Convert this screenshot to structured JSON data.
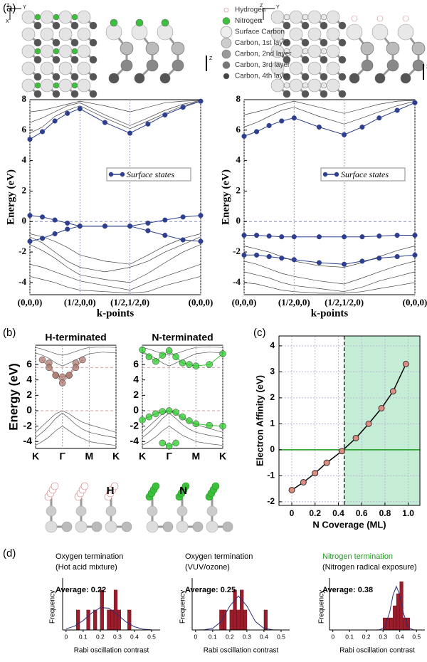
{
  "figure": {
    "panel_labels": [
      "(a)",
      "(b)",
      "(c)",
      "(d)"
    ],
    "axis_letters": [
      "Z",
      "Y",
      "X"
    ],
    "structure_legend": [
      "Hydrogen",
      "Nitrogen",
      "Surface Carbon",
      "Carbon, 1st layer",
      "Carbon, 2nd layer",
      "Carbon, 3rd layer",
      "Carbon, 4th layer"
    ]
  },
  "chart_data": [
    {
      "type": "band",
      "xlabel": "k-points",
      "ylabel": "Energy (eV)",
      "xlim": [
        0,
        1.707
      ],
      "xticks": [
        {
          "value": 0,
          "label": "(0,0,0)"
        },
        {
          "value": 0.5,
          "label": "(1/2,0,0)"
        },
        {
          "value": 1,
          "label": "(1/2,1/2,0)"
        },
        {
          "value": 1.707,
          "label": "(0,0,0)"
        }
      ],
      "ylim": [
        -4.8,
        8
      ],
      "yticks": [
        -4,
        -2,
        0,
        2,
        4,
        6,
        8
      ],
      "hlines": [
        0
      ],
      "hline_color": "#8a8fc0",
      "legend": "center",
      "x": [
        0,
        0.125,
        0.25,
        0.375,
        0.5,
        0.75,
        1,
        1.18,
        1.35,
        1.53,
        1.707
      ],
      "bulk_color": "#444444",
      "bulk_bands": [
        [
          -0.8,
          -1.0,
          -1.3,
          -1.7,
          -2.2,
          -2.6,
          -2.8,
          -2.2,
          -1.6,
          -1.1,
          -0.8
        ],
        [
          -1.0,
          -1.4,
          -2.0,
          -2.6,
          -3.0,
          -3.3,
          -3.0,
          -2.6,
          -2.0,
          -1.5,
          -1.0
        ],
        [
          -1.5,
          -1.9,
          -2.4,
          -3.0,
          -3.5,
          -3.8,
          -4.0,
          -3.4,
          -2.7,
          -2.0,
          -1.5
        ],
        [
          -2.8,
          -3.0,
          -3.3,
          -3.6,
          -3.9,
          -4.2,
          -4.5,
          -4.0,
          -3.6,
          -3.2,
          -2.8
        ],
        [
          -3.6,
          -3.8,
          -4.0,
          -4.3,
          -4.5,
          -4.6,
          -4.7,
          -4.6,
          -4.2,
          -3.9,
          -3.6
        ],
        [
          5.8,
          6.2,
          6.9,
          7.3,
          7.6,
          6.8,
          6.1,
          6.6,
          7.1,
          7.6,
          7.9
        ],
        [
          6.5,
          6.8,
          7.2,
          7.6,
          7.8,
          7.0,
          6.3,
          6.8,
          7.3,
          7.7,
          7.95
        ],
        [
          7.2,
          7.3,
          7.5,
          7.7,
          7.9,
          7.6,
          7.2,
          7.5,
          7.8,
          7.9,
          7.95
        ]
      ],
      "series": [
        {
          "name": "Surface states",
          "color": "#2d3f8e",
          "bands": [
            [
              0.4,
              0.3,
              0.1,
              -0.1,
              -0.3,
              -0.3,
              -0.3,
              -0.1,
              0.1,
              0.3,
              0.4
            ],
            [
              -1.3,
              -1.1,
              -0.8,
              -0.5,
              -0.3,
              -0.3,
              -0.3,
              -0.6,
              -0.9,
              -1.2,
              -1.3
            ],
            [
              5.4,
              5.9,
              6.6,
              7.1,
              7.4,
              6.5,
              5.8,
              6.4,
              7.0,
              7.5,
              7.9
            ]
          ]
        }
      ]
    },
    {
      "type": "band",
      "xlabel": "k-points",
      "ylabel": "Energy (eV)",
      "xlim": [
        0,
        1.707
      ],
      "xticks": [
        {
          "value": 0,
          "label": "(0,0,0)"
        },
        {
          "value": 0.5,
          "label": "(1/2,0,0)"
        },
        {
          "value": 1,
          "label": "(1/2,1/2,0)"
        },
        {
          "value": 1.707,
          "label": "(0,0,0)"
        }
      ],
      "ylim": [
        -4.8,
        8
      ],
      "yticks": [
        -4,
        -2,
        0,
        2,
        4,
        6,
        8
      ],
      "hlines": [
        0
      ],
      "hline_color": "#8a8fc0",
      "legend": "center",
      "x": [
        0,
        0.125,
        0.25,
        0.375,
        0.5,
        0.75,
        1,
        1.18,
        1.35,
        1.53,
        1.707
      ],
      "bulk_color": "#444444",
      "bulk_bands": [
        [
          -1.6,
          -1.8,
          -2.0,
          -2.3,
          -2.6,
          -2.9,
          -3.0,
          -2.7,
          -2.3,
          -1.9,
          -1.6
        ],
        [
          -2.6,
          -2.8,
          -3.1,
          -3.4,
          -3.6,
          -3.9,
          -4.1,
          -3.7,
          -3.3,
          -2.9,
          -2.6
        ],
        [
          -3.3,
          -3.5,
          -3.7,
          -4.0,
          -4.2,
          -4.4,
          -4.6,
          -4.3,
          -3.9,
          -3.6,
          -3.3
        ],
        [
          -4.0,
          -4.1,
          -4.3,
          -4.5,
          -4.6,
          -4.7,
          -4.7,
          -4.6,
          -4.4,
          -4.2,
          -4.0
        ],
        [
          6.2,
          6.5,
          6.9,
          7.3,
          7.5,
          6.9,
          6.4,
          6.8,
          7.2,
          7.6,
          7.9
        ],
        [
          7.0,
          7.2,
          7.4,
          7.7,
          7.9,
          7.5,
          7.1,
          7.4,
          7.7,
          7.9,
          7.95
        ]
      ],
      "series": [
        {
          "name": "Surface states",
          "color": "#2d3f8e",
          "bands": [
            [
              -0.9,
              -0.9,
              -0.95,
              -1.0,
              -1.0,
              -1.0,
              -1.0,
              -1.0,
              -0.95,
              -0.9,
              -0.9
            ],
            [
              -2.2,
              -2.2,
              -2.3,
              -2.4,
              -2.5,
              -2.7,
              -2.8,
              -2.6,
              -2.4,
              -2.3,
              -2.2
            ],
            [
              5.6,
              5.9,
              6.3,
              6.6,
              6.8,
              6.2,
              5.7,
              6.2,
              6.8,
              7.3,
              7.8
            ]
          ]
        }
      ]
    },
    {
      "type": "band",
      "title": "H-terminated",
      "ylabel": "Energy (eV)",
      "atom_label": "H",
      "xlim": [
        0,
        3
      ],
      "xticks": [
        {
          "value": 0,
          "label": "K"
        },
        {
          "value": 1,
          "label": "Γ"
        },
        {
          "value": 2,
          "label": "M"
        },
        {
          "value": 3,
          "label": "K"
        }
      ],
      "ylim": [
        -4.9,
        8.5
      ],
      "yticks": [
        -4,
        -2,
        0,
        2,
        4,
        6
      ],
      "hlines": [
        0,
        5.6
      ],
      "hline_color": "#d0a0a0",
      "x": [
        0,
        0.25,
        0.5,
        0.75,
        1,
        1.25,
        1.5,
        1.75,
        2,
        2.5,
        3
      ],
      "bulk_color": "#555555",
      "bulk_bands": [
        [
          -2.8,
          -2.0,
          -1.2,
          -0.4,
          0,
          -0.4,
          -1.0,
          -1.5,
          -1.8,
          -2.3,
          -2.8
        ],
        [
          -3.5,
          -2.8,
          -2.0,
          -1.0,
          -0.3,
          -1.0,
          -1.8,
          -2.4,
          -2.8,
          -3.2,
          -3.5
        ],
        [
          -4.5,
          -4.0,
          -3.4,
          -2.6,
          -2.0,
          -2.6,
          -3.2,
          -3.6,
          -4.0,
          -4.3,
          -4.5
        ],
        [
          7.5,
          7.2,
          6.8,
          6.2,
          5.8,
          6.2,
          6.6,
          7.0,
          7.4,
          7.6,
          7.5
        ],
        [
          8.2,
          8.0,
          7.7,
          7.4,
          7.2,
          7.4,
          7.7,
          8.0,
          8.2,
          8.3,
          8.2
        ]
      ],
      "series": [
        {
          "color": "#b07a70",
          "bands": [
            [
              null,
              null,
              6.2,
              4.6,
              3.6,
              4.6,
              6.2,
              null,
              null,
              null,
              null
            ],
            [
              null,
              6.6,
              5.6,
              4.6,
              4.4,
              4.6,
              5.6,
              6.6,
              null,
              null,
              null
            ]
          ]
        }
      ]
    },
    {
      "type": "band",
      "title": "N-terminated",
      "atom_label": "N",
      "xlim": [
        0,
        3
      ],
      "xticks": [
        {
          "value": 0,
          "label": "K"
        },
        {
          "value": 1,
          "label": "Γ"
        },
        {
          "value": 2,
          "label": "M"
        },
        {
          "value": 3,
          "label": "K"
        }
      ],
      "ylim": [
        -4.9,
        8.5
      ],
      "yticks": [
        -4,
        -2,
        0,
        2,
        4,
        6
      ],
      "hlines": [
        0,
        5.6
      ],
      "hline_color": "#d0a0a0",
      "x": [
        0,
        0.25,
        0.5,
        0.75,
        1,
        1.25,
        1.5,
        1.75,
        2,
        2.5,
        3
      ],
      "bulk_color": "#555555",
      "bulk_bands": [
        [
          -2.8,
          -2.0,
          -1.2,
          -0.4,
          0,
          -0.4,
          -1.0,
          -1.5,
          -1.8,
          -2.3,
          -2.8
        ],
        [
          -3.5,
          -2.8,
          -2.0,
          -1.0,
          -0.3,
          -1.0,
          -1.8,
          -2.4,
          -2.8,
          -3.2,
          -3.5
        ],
        [
          -4.5,
          -4.0,
          -3.4,
          -2.6,
          -2.0,
          -2.6,
          -3.2,
          -3.6,
          -4.0,
          -4.3,
          -4.5
        ],
        [
          7.5,
          7.2,
          6.8,
          6.2,
          5.8,
          6.2,
          6.6,
          7.0,
          7.4,
          7.6,
          7.5
        ],
        [
          8.2,
          8.0,
          7.7,
          7.4,
          7.2,
          7.4,
          7.7,
          8.0,
          8.2,
          8.3,
          8.2
        ]
      ],
      "series": [
        {
          "color": "#2ecc2e",
          "bands": [
            [
              -1.2,
              -0.8,
              -0.4,
              -0.1,
              0,
              -0.2,
              -0.8,
              -1.3,
              -1.7,
              -1.9,
              -2.0
            ],
            [
              null,
              null,
              null,
              -4.2,
              -4.6,
              -4.2,
              null,
              null,
              null,
              null,
              null
            ],
            [
              7.9,
              7.0,
              6.4,
              7.2,
              7.8,
              7.0,
              6.2,
              6.0,
              5.8,
              6.0,
              7.4
            ]
          ]
        }
      ]
    },
    {
      "type": "line",
      "xlabel": "N Coverage (ML)",
      "ylabel": "Electron Affinity (eV)",
      "x": [
        0,
        0.1,
        0.2,
        0.3,
        0.43,
        0.55,
        0.66,
        0.77,
        0.87,
        0.98
      ],
      "values": [
        -1.55,
        -1.25,
        -0.9,
        -0.5,
        -0.05,
        0.45,
        1.0,
        1.6,
        2.25,
        3.3
      ],
      "color": "#e08b80",
      "xlim": [
        -0.11,
        1.1
      ],
      "ylim": [
        -2.14,
        4.38
      ],
      "xticks": [
        0,
        0.2,
        0.4,
        0.6,
        0.8,
        {
          "value": 1,
          "label": "1.0"
        }
      ],
      "yticks": [
        -2,
        -1,
        0,
        1,
        2,
        3,
        4
      ],
      "grid": true,
      "threshold": 0.45,
      "shade_color": "#b6e8cc",
      "zero_color": "#1a9c1a"
    },
    {
      "type": "histogram",
      "title": "Oxygen termination",
      "subtitle": "(Hot acid mixture)",
      "annotation": "Average: 0.22",
      "xlabel": "Rabi oscillation contrast",
      "ylabel": "Frequency",
      "color": "#9b1c2a",
      "title_color": "#000000",
      "bins": [
        0.06,
        0.08,
        0.1,
        0.12,
        0.14,
        0.16,
        0.18,
        0.2,
        0.22,
        0.24,
        0.26,
        0.28,
        0.3,
        0.32,
        0.34,
        0.36,
        0.38
      ],
      "values": [
        1,
        0,
        0,
        1,
        0,
        1,
        0,
        2,
        0,
        1,
        1,
        2,
        1,
        0,
        0,
        1
      ],
      "fit": {
        "color": "#2b2f7a",
        "x": [
          0,
          0.05,
          0.1,
          0.15,
          0.2,
          0.25,
          0.3,
          0.35,
          0.4,
          0.45,
          0.5
        ],
        "values": [
          0.06,
          0.19,
          0.47,
          0.85,
          1.12,
          1.09,
          0.77,
          0.41,
          0.16,
          0.04,
          0.01
        ]
      },
      "xlim": [
        -0.02,
        0.55
      ],
      "ylim": [
        0,
        2.6
      ],
      "xticks": [
        0,
        0.1,
        0.2,
        0.3,
        0.4,
        0.5
      ]
    },
    {
      "type": "histogram",
      "title": "Oxygen termination",
      "subtitle": "(VUV/ozone)",
      "annotation": "Average: 0.25",
      "xlabel": "Rabi oscillation contrast",
      "ylabel": "Frequency",
      "color": "#9b1c2a",
      "title_color": "#000000",
      "bins": [
        0.14,
        0.16,
        0.18,
        0.2,
        0.22,
        0.24,
        0.26,
        0.28,
        0.3,
        0.32,
        0.34,
        0.36,
        0.38,
        0.4,
        0.42
      ],
      "values": [
        1,
        1,
        0,
        1,
        2,
        1,
        2,
        1,
        0,
        0,
        0,
        0,
        0,
        1
      ],
      "fit": {
        "color": "#2b2f7a",
        "x": [
          0,
          0.05,
          0.1,
          0.15,
          0.2,
          0.25,
          0.3,
          0.35,
          0.4,
          0.45,
          0.5
        ],
        "values": [
          0,
          0.01,
          0.08,
          0.42,
          1.2,
          1.7,
          1.2,
          0.42,
          0.08,
          0.01,
          0
        ]
      },
      "xlim": [
        -0.02,
        0.55
      ],
      "ylim": [
        0,
        2.6
      ],
      "xticks": [
        0,
        0.1,
        0.2,
        0.3,
        0.4,
        0.5
      ]
    },
    {
      "type": "histogram",
      "title": "Nitrogen termination",
      "subtitle": "(Nitrogen radical exposure)",
      "annotation": "Average: 0.38",
      "xlabel": "Rabi oscillation contrast",
      "ylabel": "Frequency",
      "color": "#9b1c2a",
      "title_color": "#1a9c1a",
      "bins": [
        0.3,
        0.32,
        0.34,
        0.36,
        0.38,
        0.4,
        0.42,
        0.44,
        0.46
      ],
      "values": [
        1,
        1,
        1,
        2,
        3,
        4,
        1,
        1
      ],
      "fit": {
        "color": "#2b2f7a",
        "x": [
          0,
          0.25,
          0.28,
          0.31,
          0.34,
          0.36,
          0.38,
          0.4,
          0.42,
          0.45,
          0.48,
          0.5
        ],
        "values": [
          0,
          0,
          0.01,
          0.24,
          1.48,
          2.9,
          3.6,
          2.9,
          1.48,
          0.24,
          0.01,
          0
        ]
      },
      "xlim": [
        -0.02,
        0.55
      ],
      "ylim": [
        0,
        4.3
      ],
      "xticks": [
        0,
        0.1,
        0.2,
        0.3,
        0.4,
        0.5
      ]
    }
  ]
}
